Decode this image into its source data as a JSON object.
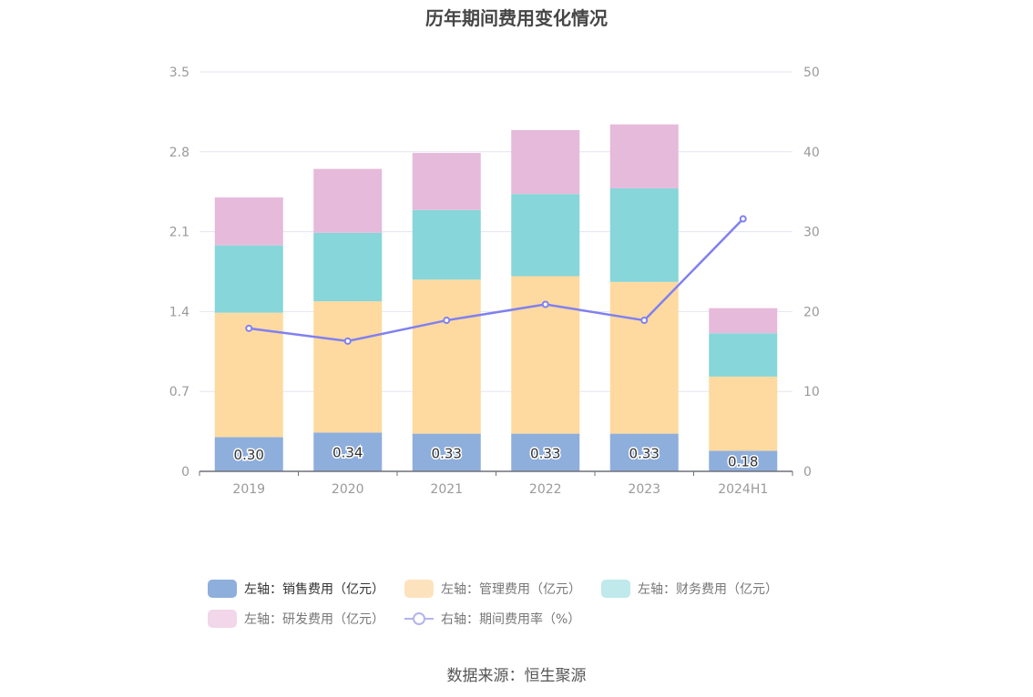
{
  "title": "历年期间费用变化情况",
  "source": "数据来源：恒生聚源",
  "legend": [
    {
      "label": "左轴：销售费用（亿元）",
      "color": "#8eaedc",
      "kind": "bar"
    },
    {
      "label": "左轴：管理费用（亿元）",
      "color": "#fde3bd",
      "kind": "bar"
    },
    {
      "label": "左轴：财务费用（亿元）",
      "color": "#bfe9ea",
      "kind": "bar"
    },
    {
      "label": "左轴：研发费用（亿元）",
      "color": "#f2d6ea",
      "kind": "bar"
    },
    {
      "label": "右轴：期间费用率（%）",
      "color": "#b3b3ee",
      "kind": "line"
    }
  ],
  "chart_data": {
    "type": "bar",
    "stacked": true,
    "categories": [
      "2019",
      "2020",
      "2021",
      "2022",
      "2023",
      "2024H1"
    ],
    "series": [
      {
        "name": "左轴：销售费用（亿元）",
        "axis": "left",
        "color": "#8eaedc",
        "values": [
          0.3,
          0.34,
          0.33,
          0.33,
          0.33,
          0.18
        ],
        "labels": [
          "0.30",
          "0.34",
          "0.33",
          "0.33",
          "0.33",
          "0.18"
        ]
      },
      {
        "name": "左轴：管理费用（亿元）",
        "axis": "left",
        "color": "#fedaa0",
        "values": [
          1.09,
          1.15,
          1.35,
          1.38,
          1.33,
          0.65
        ]
      },
      {
        "name": "左轴：财务费用（亿元）",
        "axis": "left",
        "color": "#87d6d9",
        "values": [
          0.59,
          0.6,
          0.61,
          0.72,
          0.82,
          0.38
        ]
      },
      {
        "name": "左轴：研发费用（亿元）",
        "axis": "left",
        "color": "#e6bada",
        "values": [
          0.42,
          0.56,
          0.5,
          0.56,
          0.56,
          0.22
        ]
      },
      {
        "name": "右轴：期间费用率（%）",
        "axis": "right",
        "type": "line",
        "color": "#8080f0",
        "values": [
          17.9,
          16.3,
          18.9,
          20.9,
          18.9,
          31.6
        ]
      }
    ],
    "left_axis": {
      "min": 0,
      "max": 3.5,
      "ticks": [
        "0",
        "0.7",
        "1.4",
        "2.1",
        "2.8",
        "3.5"
      ]
    },
    "right_axis": {
      "min": 0,
      "max": 50,
      "ticks": [
        "0",
        "10",
        "20",
        "30",
        "40",
        "50"
      ]
    },
    "grid": true,
    "legend_position": "bottom"
  }
}
